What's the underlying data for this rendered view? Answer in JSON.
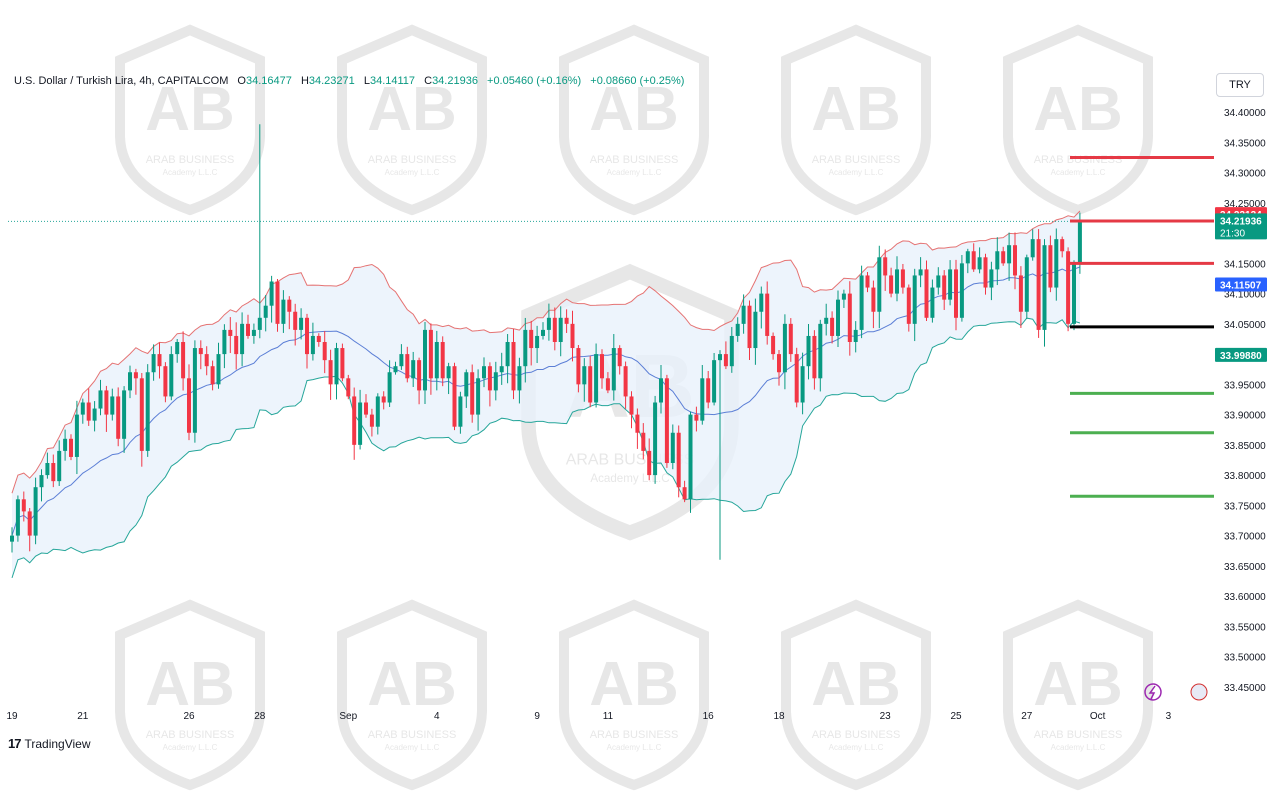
{
  "header": {
    "symbol_title": "U.S. Dollar / Turkish Lira, 4h, CAPITALCOM",
    "open_label": "O",
    "open": "34.16477",
    "high_label": "H",
    "high": "34.23271",
    "low_label": "L",
    "low": "34.14117",
    "close_label": "C",
    "close": "34.21936",
    "change": "+0.05460 (+0.16%)",
    "change2": "+0.08660 (+0.25%)"
  },
  "currency_button": "TRY",
  "brand": {
    "tradingview": "TradingView",
    "watermark_line1": "ARAB BUSINESS",
    "watermark_line2": "Academy L.L.C"
  },
  "colors": {
    "up": "#089981",
    "down": "#f23645",
    "bb_upper": "#e57373",
    "bb_lower": "#26a69a",
    "bb_basis": "#5c7fd6",
    "bb_fill": "#e8f1fb",
    "resistance": "#e53945",
    "support": "#4caf50",
    "pivot": "#000000",
    "current_line": "#26a69a"
  },
  "chart_data": {
    "type": "candlestick",
    "timeframe": "4h",
    "y_axis": {
      "min": 33.42,
      "max": 34.42,
      "ticks": [
        "34.40000",
        "34.35000",
        "34.30000",
        "34.25000",
        "34.20000",
        "34.15000",
        "34.10000",
        "34.05000",
        "34.00000",
        "33.95000",
        "33.90000",
        "33.85000",
        "33.80000",
        "33.75000",
        "33.70000",
        "33.65000",
        "33.60000",
        "33.55000",
        "33.50000",
        "33.45000"
      ]
    },
    "x_labels": [
      {
        "label": "19",
        "bar": 0
      },
      {
        "label": "21",
        "bar": 12
      },
      {
        "label": "26",
        "bar": 30
      },
      {
        "label": "28",
        "bar": 42
      },
      {
        "label": "Sep",
        "bar": 57
      },
      {
        "label": "4",
        "bar": 72
      },
      {
        "label": "9",
        "bar": 89
      },
      {
        "label": "11",
        "bar": 101
      },
      {
        "label": "16",
        "bar": 118
      },
      {
        "label": "18",
        "bar": 130
      },
      {
        "label": "23",
        "bar": 148
      },
      {
        "label": "25",
        "bar": 160
      },
      {
        "label": "27",
        "bar": 172
      },
      {
        "label": "Oct",
        "bar": 184
      },
      {
        "label": "3",
        "bar": 196
      }
    ],
    "closes": [
      33.7,
      33.76,
      33.74,
      33.7,
      33.78,
      33.8,
      33.82,
      33.79,
      33.84,
      33.86,
      33.83,
      33.9,
      33.92,
      33.89,
      33.91,
      33.94,
      33.9,
      33.93,
      33.86,
      33.94,
      33.97,
      33.96,
      33.84,
      33.97,
      34.0,
      33.98,
      33.93,
      34.0,
      34.02,
      33.96,
      33.87,
      34.01,
      34.0,
      33.98,
      33.95,
      34.0,
      34.04,
      34.03,
      34.0,
      34.05,
      34.03,
      34.04,
      34.06,
      34.08,
      34.12,
      34.05,
      34.09,
      34.07,
      34.04,
      34.06,
      34.0,
      34.03,
      34.02,
      33.99,
      33.95,
      34.01,
      33.96,
      33.93,
      33.85,
      33.92,
      33.9,
      33.88,
      33.93,
      33.92,
      33.97,
      33.98,
      34.0,
      33.96,
      33.99,
      33.94,
      34.04,
      33.96,
      34.02,
      33.96,
      33.98,
      33.88,
      33.93,
      33.97,
      33.9,
      33.96,
      33.98,
      33.94,
      33.97,
      33.98,
      34.02,
      33.94,
      33.98,
      34.04,
      34.01,
      34.03,
      34.04,
      34.06,
      34.02,
      34.06,
      34.05,
      34.01,
      33.95,
      33.98,
      33.92,
      34.0,
      33.96,
      33.94,
      34.01,
      33.98,
      33.93,
      33.9,
      33.87,
      33.84,
      33.8,
      33.92,
      33.96,
      33.82,
      33.87,
      33.78,
      33.76,
      33.9,
      33.89,
      33.96,
      33.92,
      33.99,
      34.0,
      33.98,
      34.03,
      34.05,
      34.08,
      34.01,
      34.07,
      34.1,
      34.03,
      34.0,
      33.97,
      34.05,
      34.0,
      33.92,
      33.98,
      34.03,
      33.96,
      34.05,
      34.06,
      34.03,
      34.09,
      34.1,
      34.02,
      34.04,
      34.13,
      34.11,
      34.07,
      34.16,
      34.13,
      34.1,
      34.14,
      34.11,
      34.05,
      34.13,
      34.14,
      34.06,
      34.11,
      34.13,
      34.09,
      34.14,
      34.06,
      34.15,
      34.17,
      34.14,
      34.16,
      34.11,
      34.14,
      34.17,
      34.15,
      34.18,
      34.13,
      34.07,
      34.16,
      34.19,
      34.04,
      34.18,
      34.11,
      34.19,
      34.17,
      34.05,
      34.15,
      34.22
    ],
    "indicator": {
      "name": "Bollinger Bands",
      "period": 20,
      "stddev": 2
    },
    "horizontal_levels": [
      {
        "role": "resistance",
        "value": 34.325,
        "color": "#e53945"
      },
      {
        "role": "resistance",
        "value": 34.22,
        "color": "#e53945"
      },
      {
        "role": "resistance",
        "value": 34.15,
        "color": "#e53945"
      },
      {
        "role": "pivot",
        "value": 34.045,
        "color": "#000000"
      },
      {
        "role": "support",
        "value": 33.935,
        "color": "#4caf50"
      },
      {
        "role": "support",
        "value": 33.87,
        "color": "#4caf50"
      },
      {
        "role": "support",
        "value": 33.765,
        "color": "#4caf50"
      }
    ],
    "price_labels": [
      {
        "text": "34.23134",
        "value": 34.23134,
        "bg": "#f23645"
      },
      {
        "text": "34.21936",
        "value": 34.21936,
        "bg": "#089981",
        "countdown": "21:30"
      },
      {
        "text": "34.11507",
        "value": 34.11507,
        "bg": "#2962ff"
      },
      {
        "text": "33.99880",
        "value": 33.9988,
        "bg": "#089981"
      }
    ],
    "current_price": 34.21936,
    "spike_high": 34.38,
    "spike_low": 33.66
  }
}
